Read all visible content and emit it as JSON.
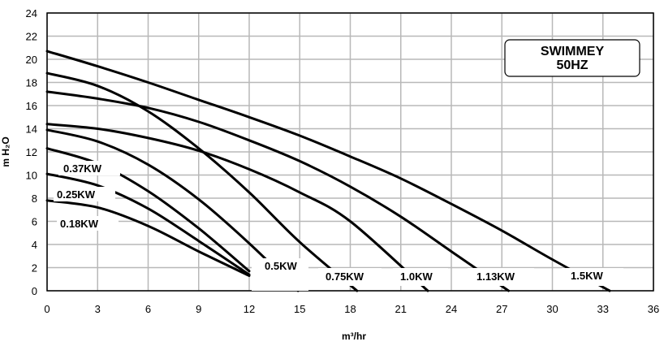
{
  "chart_data": {
    "type": "line",
    "title": "SWIMMEY",
    "subtitle": "50HZ",
    "xlabel": "m³/hr",
    "ylabel": "m H₂O",
    "xlim": [
      0,
      36
    ],
    "ylim": [
      0,
      24
    ],
    "x_ticks": [
      "0",
      "3",
      "6",
      "9",
      "12",
      "15",
      "18",
      "21",
      "24",
      "27",
      "30",
      "33",
      "36"
    ],
    "y_ticks": [
      "0",
      "2",
      "4",
      "6",
      "8",
      "10",
      "12",
      "14",
      "16",
      "18",
      "20",
      "22",
      "24"
    ],
    "grid": true,
    "colors": {
      "line": "#000000",
      "grid": "#b8b8b8",
      "frame": "#000000"
    },
    "series": [
      {
        "name": "0.18KW",
        "x": [
          0,
          3,
          6,
          9,
          12
        ],
        "y": [
          7.8,
          7.2,
          5.6,
          3.4,
          1.3
        ]
      },
      {
        "name": "0.25KW",
        "x": [
          0,
          3,
          6,
          9,
          12
        ],
        "y": [
          10.1,
          9.1,
          7.1,
          4.3,
          1.4
        ]
      },
      {
        "name": "0.37KW",
        "x": [
          0,
          3,
          6,
          9,
          12
        ],
        "y": [
          12.3,
          11.0,
          8.6,
          5.4,
          1.7
        ]
      },
      {
        "name": "0.5KW",
        "x": [
          0,
          3,
          6,
          9,
          12,
          14.9
        ],
        "y": [
          13.9,
          12.9,
          10.9,
          7.9,
          4.1,
          0
        ]
      },
      {
        "name": "0.75KW",
        "x": [
          0,
          3,
          6,
          9,
          12,
          15,
          18.4
        ],
        "y": [
          18.8,
          17.7,
          15.5,
          12.3,
          8.5,
          4.2,
          0
        ]
      },
      {
        "name": "1.0KW",
        "x": [
          0,
          3,
          6,
          9,
          12,
          15,
          18,
          22.6
        ],
        "y": [
          14.4,
          14.0,
          13.2,
          12.1,
          10.5,
          8.5,
          6.0,
          0
        ]
      },
      {
        "name": "1.13KW",
        "x": [
          0,
          3,
          6,
          9,
          12,
          15,
          18,
          21,
          24,
          27.4
        ],
        "y": [
          17.2,
          16.6,
          15.8,
          14.6,
          13.0,
          11.2,
          9.0,
          6.4,
          3.4,
          0
        ]
      },
      {
        "name": "1.5KW",
        "x": [
          0,
          3,
          6,
          9,
          12,
          15,
          18,
          21,
          24,
          27,
          30,
          33.4
        ],
        "y": [
          20.7,
          19.4,
          18.0,
          16.5,
          15.0,
          13.4,
          11.6,
          9.7,
          7.5,
          5.2,
          2.7,
          0
        ]
      }
    ],
    "labels": {
      "l018": "0.18KW",
      "l025": "0.25KW",
      "l037": "0.37KW",
      "l05": "0.5KW",
      "l075": "0.75KW",
      "l10": "1.0KW",
      "l113": "1.13KW",
      "l15": "1.5KW"
    }
  }
}
